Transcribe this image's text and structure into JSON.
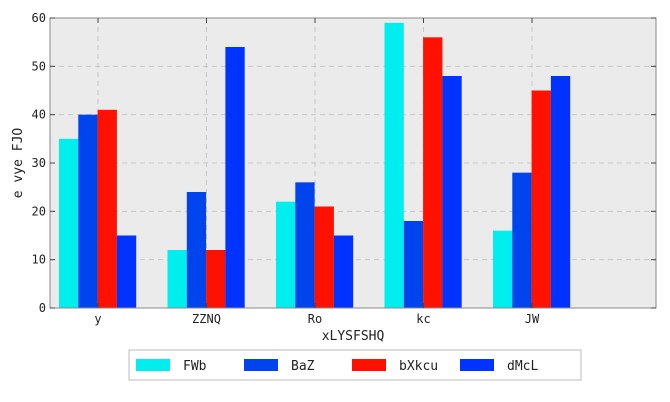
{
  "chart_data": {
    "type": "bar",
    "title": "",
    "xlabel": "xLYSFSHQ",
    "ylabel": "e vye  FJO",
    "categories": [
      "y",
      "ZZNQ",
      "Ro",
      "kc",
      "JW"
    ],
    "ylim": [
      0,
      60
    ],
    "yticks": [
      0,
      10,
      20,
      30,
      40,
      50,
      60
    ],
    "grid": true,
    "legend_position": "bottom-center",
    "series": [
      {
        "name": "FWb",
        "color": "#00eeee",
        "values": [
          35,
          12,
          22,
          59,
          16
        ]
      },
      {
        "name": "BaZ",
        "color": "#0044ee",
        "values": [
          40,
          24,
          26,
          18,
          28
        ]
      },
      {
        "name": "bXkcu",
        "color": "#ff1100",
        "values": [
          41,
          12,
          21,
          56,
          45
        ]
      },
      {
        "name": "dMcL",
        "color": "#0033ff",
        "values": [
          15,
          54,
          15,
          48,
          48
        ]
      }
    ]
  }
}
